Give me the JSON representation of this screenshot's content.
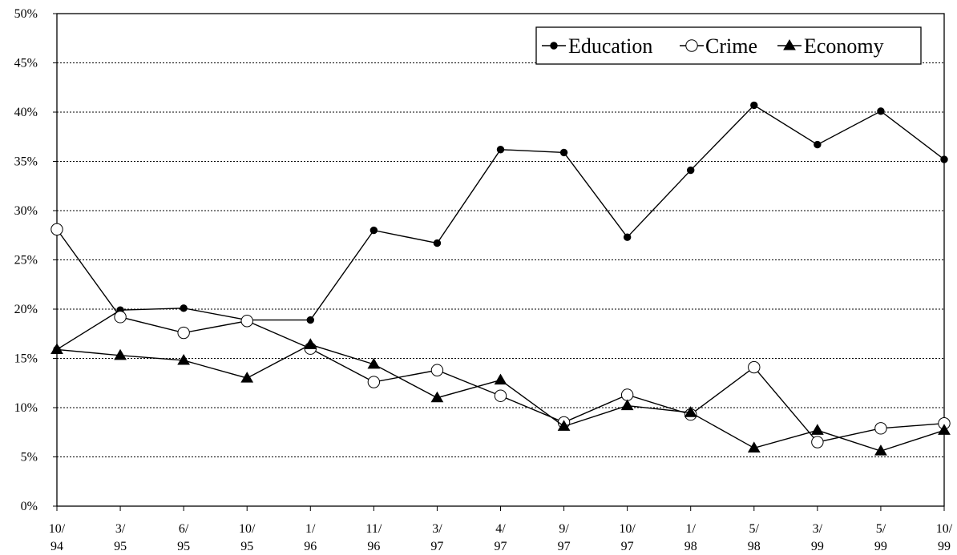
{
  "chart_data": {
    "type": "line",
    "title": "",
    "xlabel": "",
    "ylabel": "",
    "categories": [
      [
        "10/",
        "94"
      ],
      [
        "3/",
        "95"
      ],
      [
        "6/",
        "95"
      ],
      [
        "10/",
        "95"
      ],
      [
        "1/",
        "96"
      ],
      [
        "11/",
        "96"
      ],
      [
        "3/",
        "97"
      ],
      [
        "4/",
        "97"
      ],
      [
        "9/",
        "97"
      ],
      [
        "10/",
        "97"
      ],
      [
        "1/",
        "98"
      ],
      [
        "5/",
        "98"
      ],
      [
        "3/",
        "99"
      ],
      [
        "5/",
        "99"
      ],
      [
        "10/",
        "99"
      ]
    ],
    "ylim": [
      0,
      50
    ],
    "y_ticks": [
      "0%",
      "5%",
      "10%",
      "15%",
      "20%",
      "25%",
      "30%",
      "35%",
      "40%",
      "45%",
      "50%"
    ],
    "y_tick_values": [
      0,
      5,
      10,
      15,
      20,
      25,
      30,
      35,
      40,
      45,
      50
    ],
    "grid": "horizontal-dashed",
    "legend_position": "top-right",
    "series": [
      {
        "name": "Education",
        "marker": "filled-circle",
        "color": "#000000",
        "values": [
          15.9,
          19.9,
          20.1,
          18.9,
          18.9,
          28.0,
          26.7,
          36.2,
          35.9,
          27.3,
          34.1,
          40.7,
          36.7,
          40.1,
          35.2
        ]
      },
      {
        "name": "Crime",
        "marker": "open-circle",
        "color": "#000000",
        "values": [
          28.1,
          19.2,
          17.6,
          18.8,
          16.0,
          12.6,
          13.8,
          11.2,
          8.5,
          11.3,
          9.3,
          14.1,
          6.5,
          7.9,
          8.4
        ]
      },
      {
        "name": "Economy",
        "marker": "filled-triangle",
        "color": "#000000",
        "values": [
          15.9,
          15.3,
          14.8,
          13.0,
          16.4,
          14.4,
          11.0,
          12.8,
          8.1,
          10.2,
          9.5,
          5.9,
          7.7,
          5.6,
          7.7
        ]
      }
    ]
  }
}
